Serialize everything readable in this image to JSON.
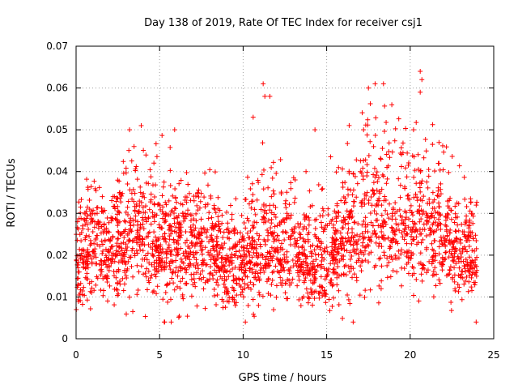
{
  "chart_data": {
    "type": "scatter",
    "title": "Day 138 of 2019, Rate Of TEC Index for receiver csj1",
    "xlabel": "GPS time / hours",
    "ylabel": "ROTI / TECUs",
    "xlim": [
      0,
      25
    ],
    "ylim": [
      0,
      0.07
    ],
    "xticks": [
      0,
      5,
      10,
      15,
      20,
      25
    ],
    "yticks": [
      0,
      0.01,
      0.02,
      0.03,
      0.04,
      0.05,
      0.06,
      0.07
    ],
    "xtick_labels": [
      "0",
      "5",
      "10",
      "15",
      "20",
      "25"
    ],
    "ytick_labels": [
      "0",
      "0.01",
      "0.02",
      "0.03",
      "0.04",
      "0.05",
      "0.06",
      "0.07"
    ],
    "grid": true,
    "marker": "+",
    "series": [
      {
        "name": "ROTI",
        "color": "#ff0000",
        "x_range": [
          0,
          24
        ],
        "y_range": [
          0.004,
          0.064
        ],
        "envelope": {
          "x": [
            0,
            1,
            2,
            3,
            4,
            5,
            6,
            7,
            8,
            9,
            10,
            11,
            12,
            13,
            14,
            15,
            16,
            17,
            18,
            19,
            20,
            21,
            22,
            23,
            24
          ],
          "median": [
            0.02,
            0.022,
            0.021,
            0.024,
            0.025,
            0.022,
            0.022,
            0.021,
            0.023,
            0.018,
            0.018,
            0.022,
            0.021,
            0.02,
            0.017,
            0.019,
            0.023,
            0.026,
            0.028,
            0.027,
            0.026,
            0.027,
            0.024,
            0.02,
            0.018
          ],
          "spread_low": [
            0.008,
            0.01,
            0.008,
            0.009,
            0.01,
            0.009,
            0.008,
            0.01,
            0.01,
            0.008,
            0.008,
            0.01,
            0.01,
            0.01,
            0.009,
            0.009,
            0.011,
            0.012,
            0.013,
            0.012,
            0.012,
            0.012,
            0.011,
            0.01,
            0.009
          ],
          "spread_high": [
            0.02,
            0.022,
            0.02,
            0.026,
            0.026,
            0.022,
            0.02,
            0.02,
            0.02,
            0.018,
            0.02,
            0.025,
            0.024,
            0.02,
            0.018,
            0.018,
            0.022,
            0.03,
            0.032,
            0.03,
            0.028,
            0.026,
            0.024,
            0.02,
            0.018
          ]
        },
        "peaks": [
          {
            "x": 11.2,
            "y": 0.061
          },
          {
            "x": 11.3,
            "y": 0.058
          },
          {
            "x": 11.6,
            "y": 0.058
          },
          {
            "x": 14.3,
            "y": 0.05
          },
          {
            "x": 3.2,
            "y": 0.05
          },
          {
            "x": 3.9,
            "y": 0.051
          },
          {
            "x": 5.9,
            "y": 0.05
          },
          {
            "x": 17.5,
            "y": 0.06
          },
          {
            "x": 17.9,
            "y": 0.061
          },
          {
            "x": 18.4,
            "y": 0.061
          },
          {
            "x": 18.9,
            "y": 0.056
          },
          {
            "x": 20.6,
            "y": 0.064
          },
          {
            "x": 20.7,
            "y": 0.062
          },
          {
            "x": 20.6,
            "y": 0.059
          },
          {
            "x": 20.2,
            "y": 0.05
          },
          {
            "x": 10.6,
            "y": 0.053
          }
        ],
        "n_points": 2600
      }
    ]
  }
}
